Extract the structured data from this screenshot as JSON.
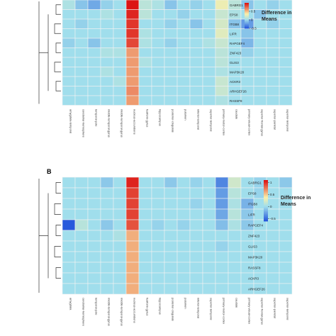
{
  "chart_data": [
    {
      "type": "heatmap",
      "panel_label": "",
      "rows": [
        "GABRG1",
        "EPS8",
        "ITGB8",
        "LIFR",
        "RAPGEF4",
        "ZNF423",
        "GLIS3",
        "MAP3K20",
        "ACKR3",
        "ARHGEF26",
        "RASSF8"
      ],
      "columns": [
        "amygdala-temporal",
        "cerebellar-hemisphere",
        "temporal-pole",
        "middle-temporal-gyrus",
        "middle-temporal-gyrus",
        "nucleus-accumbens",
        "fusiform-gyrus",
        "hippocampus",
        "posterior-cingulate",
        "putamen",
        "inferior-temporal",
        "superior-temporal",
        "primary-motor-cortex",
        "caudate",
        "primary-visual-cortex",
        "superior-frontal-gyrus",
        "superior-parietal",
        "superior-temporal"
      ],
      "values": [
        [
          0.05,
          -0.1,
          -0.2,
          -0.05,
          0,
          1.0,
          0.1,
          0.05,
          -0.1,
          0,
          -0.05,
          0,
          0.3,
          0.1,
          -0.1,
          0,
          -0.05,
          0
        ],
        [
          0,
          0,
          0,
          0.05,
          0,
          0.95,
          0.1,
          0,
          0,
          -0.05,
          0,
          0,
          0.15,
          0.05,
          0,
          -0.1,
          0,
          0
        ],
        [
          0,
          -0.05,
          0,
          0,
          0,
          0.9,
          0,
          0,
          -0.05,
          0,
          -0.1,
          0,
          0.2,
          -0.1,
          -0.25,
          0,
          -0.05,
          0
        ],
        [
          0,
          0,
          0,
          0,
          0,
          0.9,
          0.05,
          0,
          0,
          0,
          0,
          0,
          0.25,
          0,
          -0.1,
          0,
          0,
          0
        ],
        [
          -0.05,
          0,
          -0.1,
          0,
          0,
          0.85,
          0.05,
          0,
          -0.05,
          0,
          0,
          0.05,
          0.15,
          0,
          -0.15,
          0,
          0,
          0
        ],
        [
          0,
          0,
          0,
          0.05,
          0.05,
          0.6,
          0,
          0,
          0,
          0,
          0,
          0,
          0.1,
          0,
          -0.05,
          0,
          0,
          0
        ],
        [
          0,
          0,
          0,
          0,
          0,
          0.6,
          0.05,
          0,
          0,
          0,
          0,
          0,
          0.1,
          0,
          0,
          0,
          0,
          0
        ],
        [
          0,
          0,
          0,
          0.05,
          0,
          0.6,
          0,
          0,
          0,
          0,
          0,
          0,
          0.05,
          0,
          0,
          0,
          0,
          0
        ],
        [
          0,
          0,
          0,
          0,
          0.05,
          0.6,
          0,
          0,
          0,
          0,
          0,
          0,
          0.15,
          0,
          0,
          0,
          0,
          0
        ],
        [
          0,
          0,
          0,
          0,
          0,
          0.65,
          0,
          0,
          0,
          0,
          0,
          0,
          0.15,
          0,
          0,
          0,
          0,
          0
        ],
        [
          0,
          0,
          0,
          0,
          0,
          0.6,
          0,
          0,
          0,
          0,
          0,
          0,
          0.05,
          0,
          0,
          0,
          0,
          0
        ]
      ],
      "legend": {
        "title_line1": "Difference in",
        "title_line2": "Means",
        "ticks": [
          0.5,
          0,
          -0.5
        ],
        "tick_labels": [
          "0.5",
          "0",
          "-0.5"
        ],
        "range": [
          -0.5,
          1.0
        ]
      }
    },
    {
      "type": "heatmap",
      "panel_label": "B",
      "rows": [
        "GABRG1",
        "EPS8",
        "ITGB8",
        "LIFR",
        "RAPGEF4",
        "ZNF423",
        "GLIS3",
        "MAP3K20",
        "RASSF8",
        "ACKR3",
        "ARHGEF26"
      ],
      "columns": [
        "amygdala",
        "cerebellar-hemisphere",
        "temporal-pole",
        "middle-temporal-gyrus",
        "middle-temporal-gyrus",
        "nucleus-accumbens",
        "fusiform-gyrus",
        "hippocampus",
        "posterior-cingulate",
        "putamen",
        "inferior-temporal",
        "superior-temporal",
        "primary-motor-cortex",
        "caudate",
        "primary-visual-cortex",
        "superior-frontal-gyrus",
        "superior-parietal",
        "superior-temporal"
      ],
      "values": [
        [
          0,
          0,
          0,
          -0.1,
          0,
          1.05,
          0,
          0,
          -0.1,
          0,
          -0.05,
          0,
          -0.4,
          0.2,
          0,
          -0.05,
          0,
          -0.1
        ],
        [
          0,
          0,
          0,
          0,
          0,
          0.95,
          0,
          0,
          0,
          0,
          0,
          0,
          -0.3,
          0.1,
          0,
          -0.05,
          0,
          0
        ],
        [
          0,
          0,
          0,
          0,
          0,
          0.95,
          0,
          0,
          0,
          0,
          -0.05,
          0,
          -0.3,
          0.05,
          -0.2,
          0,
          0,
          0
        ],
        [
          0,
          0,
          0,
          0,
          0,
          0.95,
          0,
          0,
          0,
          0,
          0,
          0,
          -0.25,
          0.1,
          -0.1,
          0,
          0,
          0
        ],
        [
          -0.6,
          0.1,
          0,
          -0.1,
          0,
          0.9,
          0,
          -0.05,
          0,
          -0.05,
          0,
          0,
          -0.15,
          0.05,
          -0.1,
          0,
          0,
          0
        ],
        [
          0,
          0,
          0,
          0,
          0.05,
          0.6,
          0,
          0,
          0,
          0,
          0,
          0,
          0,
          0,
          0,
          0,
          0,
          0
        ],
        [
          0,
          0,
          0,
          0,
          0,
          0.6,
          0,
          0,
          0,
          0,
          0,
          0,
          -0.05,
          0,
          0,
          0,
          0,
          0
        ],
        [
          0,
          0,
          0,
          0,
          0,
          0.6,
          0,
          0,
          0,
          0,
          0,
          0,
          0,
          0,
          0,
          0,
          0,
          0
        ],
        [
          0,
          0,
          0,
          0,
          0,
          0.6,
          0,
          0,
          0,
          0,
          0,
          0,
          0,
          0,
          0,
          0,
          0,
          0
        ],
        [
          0,
          0,
          0,
          0,
          0,
          0.6,
          0,
          0,
          0,
          0,
          0,
          0,
          0,
          0,
          0,
          0,
          0,
          0
        ],
        [
          0,
          0,
          0,
          0,
          0,
          0.6,
          0,
          0,
          0,
          0,
          0,
          0,
          0,
          0,
          0,
          0,
          0,
          0
        ]
      ],
      "legend": {
        "title_line1": "Difference in",
        "title_line2": "Means",
        "ticks": [
          1,
          0.5,
          0,
          -0.5
        ],
        "tick_labels": [
          "1",
          "0.5",
          "0",
          "-0.5"
        ],
        "range": [
          -0.6,
          1.1
        ]
      }
    }
  ]
}
